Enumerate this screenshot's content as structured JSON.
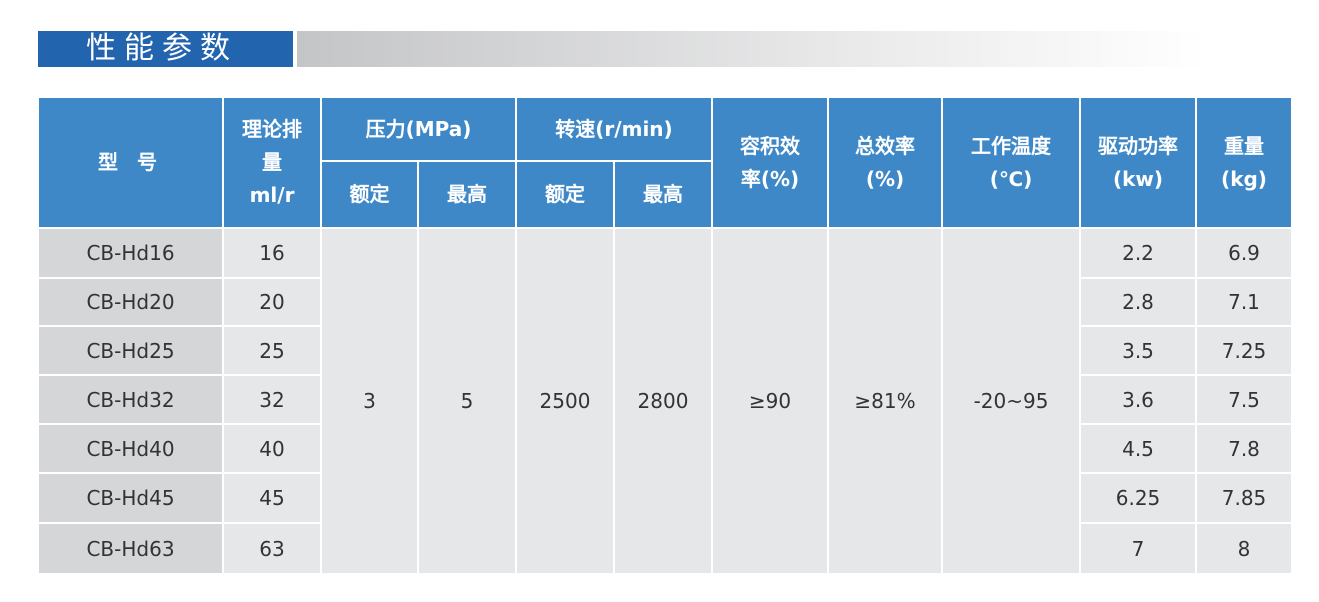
{
  "title": "性能参数",
  "headers": {
    "model": "型 号",
    "displacement": "理论排量ml/r",
    "pressure": "压力(MPa)",
    "speed": "转速(r/min)",
    "rated": "额定",
    "max": "最高",
    "vol_eff": "容积效率(%)",
    "total_eff": "总效率(%)",
    "temp": "工作温度(℃)",
    "power": "驱动功率(kw)",
    "weight": "重量(kg)"
  },
  "shared": {
    "pressure_rated": "3",
    "pressure_max": "5",
    "speed_rated": "2500",
    "speed_max": "2800",
    "vol_eff": "≥90",
    "total_eff": "≥81%",
    "temp": "-20~95"
  },
  "rows": [
    {
      "model": "CB-Hd16",
      "disp": "16",
      "power": "2.2",
      "weight": "6.9"
    },
    {
      "model": "CB-Hd20",
      "disp": "20",
      "power": "2.8",
      "weight": "7.1"
    },
    {
      "model": "CB-Hd25",
      "disp": "25",
      "power": "3.5",
      "weight": "7.25"
    },
    {
      "model": "CB-Hd32",
      "disp": "32",
      "power": "3.6",
      "weight": "7.5"
    },
    {
      "model": "CB-Hd40",
      "disp": "40",
      "power": "4.5",
      "weight": "7.8"
    },
    {
      "model": "CB-Hd45",
      "disp": "45",
      "power": "6.25",
      "weight": "7.85"
    },
    {
      "model": "CB-Hd63",
      "disp": "63",
      "power": "7",
      "weight": "8"
    }
  ]
}
